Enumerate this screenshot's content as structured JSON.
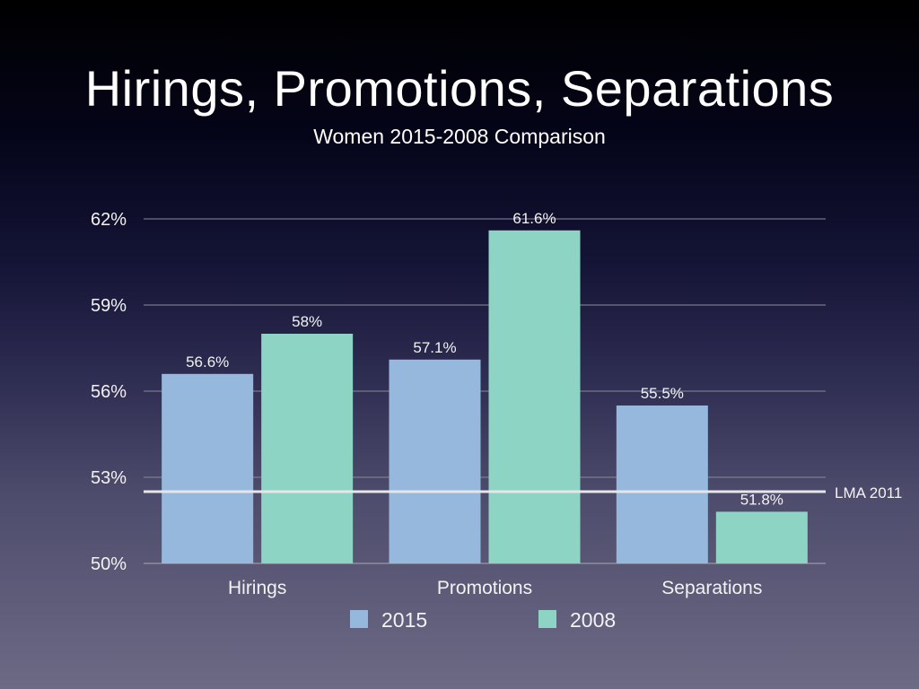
{
  "slide": {
    "title": "Hirings, Promotions, Separations",
    "subtitle": "Women 2015-2008 Comparison"
  },
  "chart_data": {
    "type": "bar",
    "title": "Hirings, Promotions, Separations",
    "subtitle": "Women 2015-2008 Comparison",
    "xlabel": "",
    "ylabel": "",
    "categories": [
      "Hirings",
      "Promotions",
      "Separations"
    ],
    "series": [
      {
        "name": "2015",
        "color": "#95b8dc",
        "values": [
          56.6,
          57.1,
          55.5
        ],
        "labels": [
          "56.6%",
          "57.1%",
          "55.5%"
        ]
      },
      {
        "name": "2008",
        "color": "#8dd4c4",
        "values": [
          58,
          61.6,
          51.8
        ],
        "labels": [
          "58%",
          "61.6%",
          "51.8%"
        ]
      }
    ],
    "ylim": [
      50,
      62
    ],
    "yticks": [
      50,
      53,
      56,
      59,
      62
    ],
    "ytick_labels": [
      "50%",
      "53%",
      "56%",
      "59%",
      "62%"
    ],
    "grid": true,
    "reference_line": {
      "label": "LMA 2011",
      "value": 52.5,
      "color": "#e6e6ea"
    },
    "legend": {
      "placement": "bottom-center",
      "entries": [
        "2015",
        "2008"
      ]
    }
  }
}
